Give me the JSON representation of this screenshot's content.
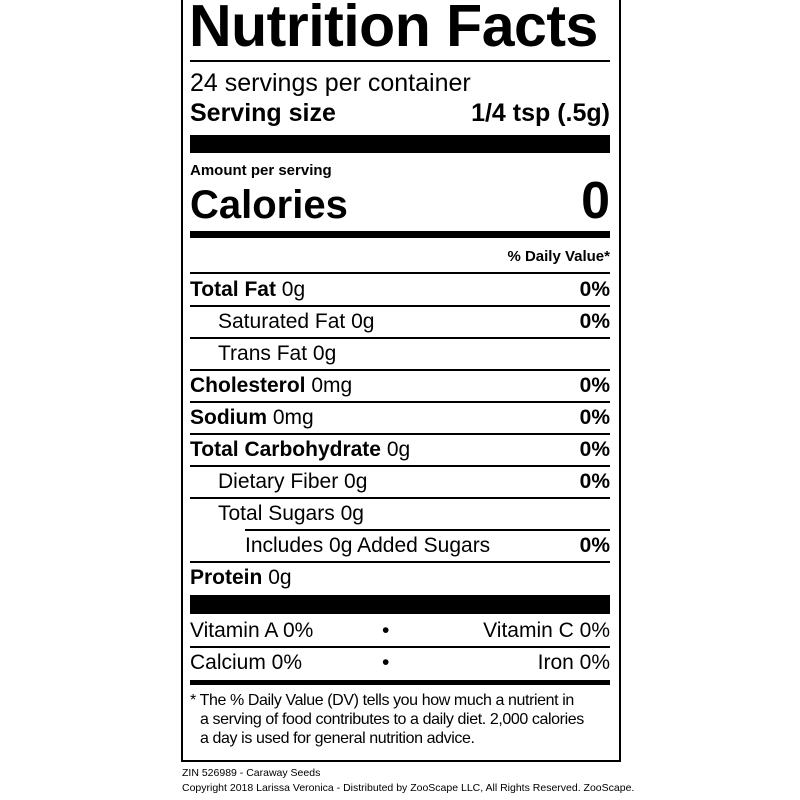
{
  "title": "Nutrition Facts",
  "servings_per_container": "24 servings per container",
  "serving_size_label": "Serving size",
  "serving_size_value": "1/4 tsp (.5g)",
  "amount_per_serving": "Amount per serving",
  "calories_label": "Calories",
  "calories_value": "0",
  "daily_value_header": "% Daily Value*",
  "nutrients": [
    {
      "bold": "Total Fat",
      "amount": "0g",
      "dv": "0%",
      "indent": 0
    },
    {
      "bold": "",
      "amount": "Saturated Fat 0g",
      "dv": "0%",
      "indent": 1
    },
    {
      "bold": "",
      "amount": "Trans Fat 0g",
      "dv": "",
      "indent": 1
    },
    {
      "bold": "Cholesterol",
      "amount": "0mg",
      "dv": "0%",
      "indent": 0
    },
    {
      "bold": "Sodium",
      "amount": "0mg",
      "dv": "0%",
      "indent": 0
    },
    {
      "bold": "Total Carbohydrate",
      "amount": "0g",
      "dv": "0%",
      "indent": 0
    },
    {
      "bold": "",
      "amount": "Dietary Fiber 0g",
      "dv": "0%",
      "indent": 1
    },
    {
      "bold": "",
      "amount": "Total Sugars 0g",
      "dv": "",
      "indent": 1
    },
    {
      "bold": "",
      "amount": "Includes 0g Added Sugars",
      "dv": "0%",
      "indent": 2
    },
    {
      "bold": "Protein",
      "amount": "0g",
      "dv": "",
      "indent": 0
    }
  ],
  "vitamins": {
    "vitamin_a": "Vitamin A 0%",
    "vitamin_c": "Vitamin C 0%",
    "calcium": "Calcium 0%",
    "iron": "Iron 0%",
    "separator": "•"
  },
  "footnote": {
    "line1": "* The % Daily Value (DV) tells you how much a nutrient in",
    "line2": "a serving of food contributes to a daily diet. 2,000 calories",
    "line3": "a day is used for general nutrition advice."
  },
  "product_line": "ZIN 526989 - Caraway Seeds",
  "copyright": "Copyright 2018 Larissa Veronica - Distributed by ZooScape LLC, All Rights Reserved. ZooScape."
}
